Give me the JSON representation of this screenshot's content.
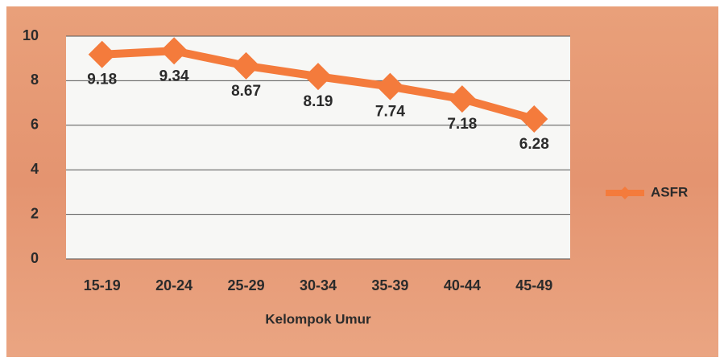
{
  "chart_data": {
    "type": "line",
    "x_label": "Kelompok Umur",
    "categories": [
      "15-19",
      "20-24",
      "25-29",
      "30-34",
      "35-39",
      "40-44",
      "45-49"
    ],
    "series": [
      {
        "name": "ASFR",
        "color": "#f47b3c",
        "values": [
          9.18,
          9.34,
          8.67,
          8.19,
          7.74,
          7.18,
          6.28
        ]
      }
    ],
    "ylim": [
      0,
      10
    ],
    "yticks": [
      0,
      2,
      4,
      6,
      8,
      10
    ],
    "grid": true,
    "legend": "right"
  }
}
